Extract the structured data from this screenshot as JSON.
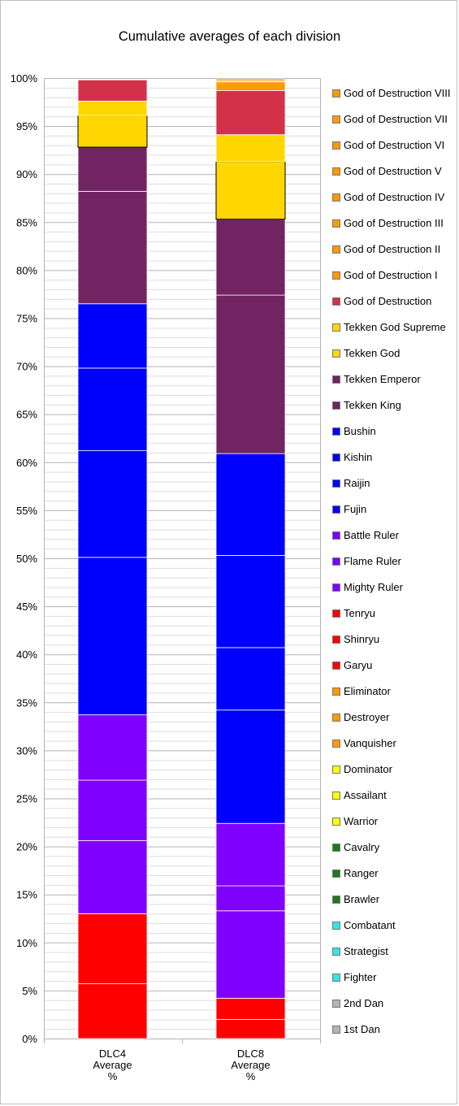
{
  "chart_data": {
    "type": "bar",
    "stacked": true,
    "title": "Cumulative averages of each division",
    "ylim": [
      0,
      100
    ],
    "y_ticks": [
      "0%",
      "5%",
      "10%",
      "15%",
      "20%",
      "25%",
      "30%",
      "35%",
      "40%",
      "45%",
      "50%",
      "55%",
      "60%",
      "65%",
      "70%",
      "75%",
      "80%",
      "85%",
      "90%",
      "95%",
      "100%"
    ],
    "grid": true,
    "legend_position": "right",
    "categories": [
      {
        "line1": "DLC4",
        "line2": "Average",
        "line3": "%"
      },
      {
        "line1": "DLC8",
        "line2": "Average",
        "line3": "%"
      }
    ],
    "series": [
      {
        "name": "1st Dan",
        "color": "#b4b4b4",
        "values": [
          0,
          0
        ]
      },
      {
        "name": "2nd Dan",
        "color": "#b4b4b4",
        "values": [
          0,
          0
        ]
      },
      {
        "name": "Fighter",
        "color": "#33e6e6",
        "values": [
          0,
          0
        ]
      },
      {
        "name": "Strategist",
        "color": "#33e6e6",
        "values": [
          0,
          0
        ]
      },
      {
        "name": "Combatant",
        "color": "#33e6e6",
        "values": [
          0,
          0
        ]
      },
      {
        "name": "Brawler",
        "color": "#1e7a1e",
        "values": [
          0,
          0
        ]
      },
      {
        "name": "Ranger",
        "color": "#1e7a1e",
        "values": [
          0,
          0
        ]
      },
      {
        "name": "Cavalry",
        "color": "#1e7a1e",
        "values": [
          0,
          0
        ]
      },
      {
        "name": "Warrior",
        "color": "#ffff00",
        "values": [
          0,
          0
        ]
      },
      {
        "name": "Assailant",
        "color": "#ffff00",
        "values": [
          0,
          0
        ]
      },
      {
        "name": "Dominator",
        "color": "#ffff00",
        "values": [
          0,
          0
        ]
      },
      {
        "name": "Vanquisher",
        "color": "#ff9900",
        "values": [
          0,
          0
        ]
      },
      {
        "name": "Destroyer",
        "color": "#ff9900",
        "values": [
          0,
          0
        ]
      },
      {
        "name": "Eliminator",
        "color": "#ff9900",
        "values": [
          0,
          0
        ]
      },
      {
        "name": "Garyu",
        "color": "#ff0000",
        "values": [
          5.7,
          2.0
        ]
      },
      {
        "name": "Shinryu",
        "color": "#ff0000",
        "values": [
          7.3,
          2.2
        ]
      },
      {
        "name": "Tenryu",
        "color": "#ff0000",
        "values": [
          0,
          0
        ]
      },
      {
        "name": "Mighty Ruler",
        "color": "#8000ff",
        "values": [
          7.6,
          9.1
        ]
      },
      {
        "name": "Flame Ruler",
        "color": "#8000ff",
        "values": [
          6.3,
          2.6
        ]
      },
      {
        "name": "Battle Ruler",
        "color": "#8000ff",
        "values": [
          6.8,
          6.5
        ]
      },
      {
        "name": "Fujin",
        "color": "#0000ff",
        "values": [
          16.4,
          11.8
        ]
      },
      {
        "name": "Raijin",
        "color": "#0000ff",
        "values": [
          11.1,
          6.5
        ]
      },
      {
        "name": "Kishin",
        "color": "#0000ff",
        "values": [
          8.6,
          9.6
        ]
      },
      {
        "name": "Bushin",
        "color": "#0000ff",
        "values": [
          6.7,
          10.6
        ]
      },
      {
        "name": "Tekken King",
        "color": "#722462",
        "values": [
          11.7,
          16.5
        ]
      },
      {
        "name": "Tekken Emperor",
        "color": "#722462",
        "values": [
          4.6,
          7.9
        ]
      },
      {
        "name": "Tekken God",
        "color": "#ffd700",
        "values": [
          3.3,
          6.0
        ]
      },
      {
        "name": "Tekken God Supreme",
        "color": "#ffd700",
        "values": [
          1.5,
          2.8
        ]
      },
      {
        "name": "God of Destruction",
        "color": "#d3304a",
        "values": [
          2.2,
          4.6
        ]
      },
      {
        "name": "God of Destruction I",
        "color": "#ff9900",
        "values": [
          0,
          0.9
        ]
      },
      {
        "name": "God of Destruction II",
        "color": "#ff9900",
        "values": [
          0,
          0.1
        ]
      },
      {
        "name": "God of Destruction III",
        "color": "#ff9900",
        "values": [
          0,
          0
        ]
      },
      {
        "name": "God of Destruction IV",
        "color": "#ff9900",
        "values": [
          0,
          0
        ]
      },
      {
        "name": "God of Destruction V",
        "color": "#ff9900",
        "values": [
          0,
          0
        ]
      },
      {
        "name": "God of Destruction VI",
        "color": "#ff9900",
        "values": [
          0,
          0
        ]
      },
      {
        "name": "God of Destruction VII",
        "color": "#ff9900",
        "values": [
          0,
          0
        ]
      },
      {
        "name": "God of Destruction VIII",
        "color": "#ff9900",
        "values": [
          0,
          0.2
        ]
      }
    ]
  }
}
